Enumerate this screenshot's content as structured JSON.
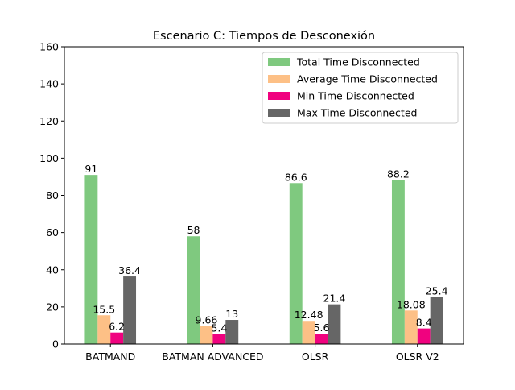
{
  "chart_data": {
    "type": "bar",
    "title": "Escenario C: Tiempos de Desconexión",
    "xlabel": "",
    "ylabel": "",
    "categories": [
      "BATMAND",
      "BATMAN ADVANCED",
      "OLSR",
      "OLSR V2"
    ],
    "ylim": [
      0,
      160
    ],
    "yticks": [
      0,
      20,
      40,
      60,
      80,
      100,
      120,
      140,
      160
    ],
    "grid": false,
    "legend_position": "top-right",
    "series": [
      {
        "name": "Total Time Disconnected",
        "color": "#7fc97f",
        "values": [
          91,
          58,
          86.6,
          88.2
        ],
        "labels": [
          "91",
          "58",
          "86.6",
          "88.2"
        ]
      },
      {
        "name": "Average Time Disconnected",
        "color": "#fdc086",
        "values": [
          15.5,
          9.66,
          12.48,
          18.08
        ],
        "labels": [
          "15.5",
          "9.66",
          "12.48",
          "18.08"
        ]
      },
      {
        "name": "Min Time Disconnected",
        "color": "#f0027f",
        "values": [
          6.2,
          5.4,
          5.6,
          8.4
        ],
        "labels": [
          "6.2",
          "5.4",
          "5.6",
          "8.4"
        ]
      },
      {
        "name": "Max Time Disconnected",
        "color": "#666666",
        "values": [
          36.4,
          13,
          21.4,
          25.4
        ],
        "labels": [
          "36.4",
          "13",
          "21.4",
          "25.4"
        ]
      }
    ]
  }
}
